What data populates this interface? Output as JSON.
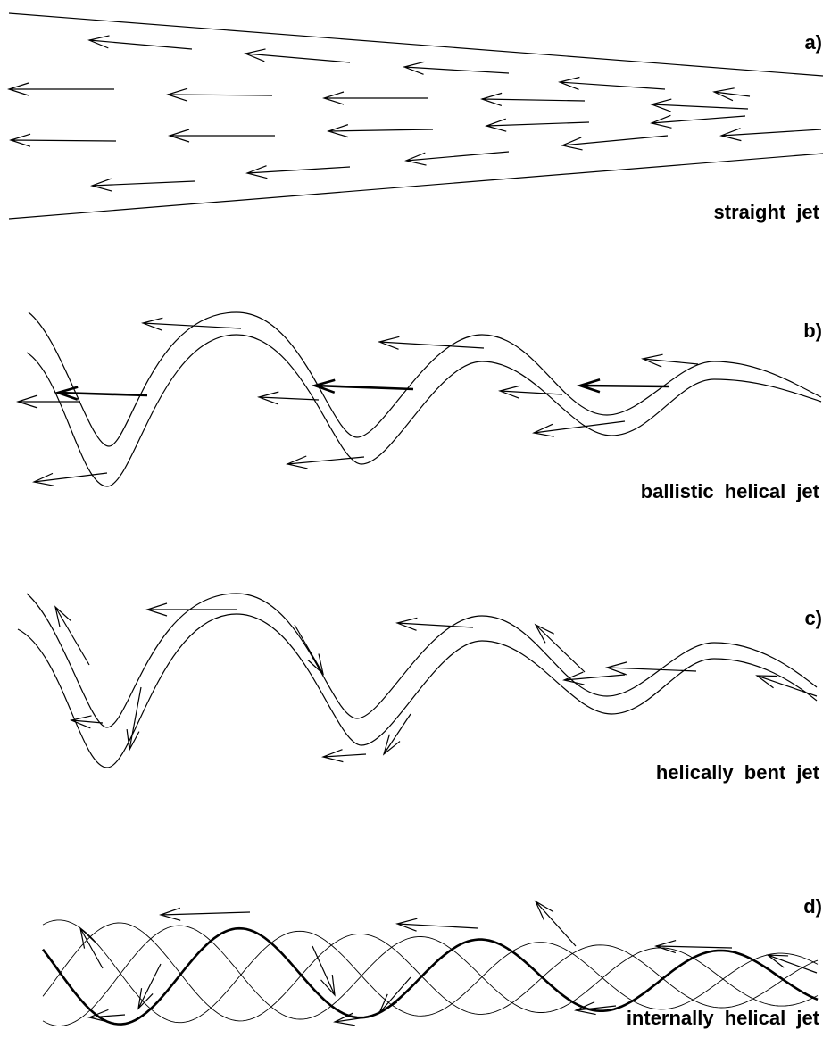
{
  "panels": [
    {
      "label": "a)",
      "caption": "straight jet"
    },
    {
      "label": "b)",
      "caption": "ballistic helical jet"
    },
    {
      "label": "c)",
      "caption": "helically bent jet"
    },
    {
      "label": "d)",
      "caption": "internally helical jet"
    }
  ]
}
